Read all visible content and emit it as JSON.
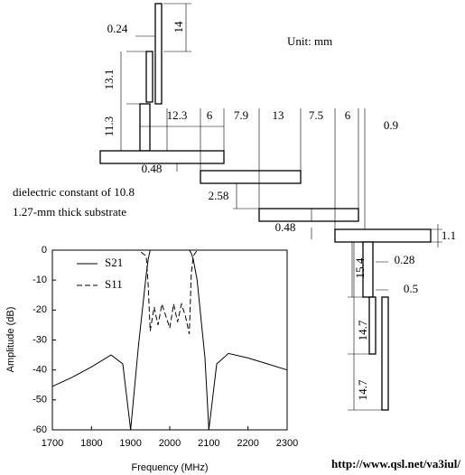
{
  "diagram": {
    "unit": "Unit: mm",
    "substrate": [
      "dielectric constant of 10.8",
      "1.27-mm thick substrate"
    ],
    "dimensions": [
      "0.24",
      "14",
      "13.1",
      "11.3",
      "12.3",
      "6",
      "7.9",
      "13",
      "7.5",
      "6",
      "0.9",
      "0.48",
      "2.58",
      "0.48",
      "1.1",
      "15.4",
      "0.28",
      "0.5",
      "14.7",
      "14.7"
    ],
    "url": "http://www.qsl.net/va3iul/"
  },
  "chart_data": {
    "type": "line",
    "xlabel": "Frequency (MHz)",
    "ylabel": "Amplitude (dB)",
    "x": [
      1700,
      1750,
      1800,
      1850,
      1880,
      1900,
      1920,
      1940,
      1945,
      1950,
      1960,
      1970,
      1980,
      1990,
      2000,
      2010,
      2020,
      2030,
      2040,
      2050,
      2055,
      2060,
      2070,
      2090,
      2100,
      2120,
      2150,
      2200,
      2250,
      2300
    ],
    "series": [
      {
        "name": "S21",
        "color": "#000000",
        "dash": false,
        "values": [
          -45.5,
          -42.5,
          -39,
          -35,
          -38,
          -60,
          -32,
          -8,
          -3,
          0,
          0,
          0,
          0,
          0,
          0,
          0,
          0,
          0,
          0,
          0,
          -1,
          -3,
          -10,
          -36,
          -60,
          -38,
          -34.5,
          -36,
          -38,
          -40
        ]
      },
      {
        "name": "S11",
        "color": "#000000",
        "dash": true,
        "values": [
          0,
          0,
          0,
          0,
          0,
          0,
          0,
          -2,
          -12,
          -27,
          -19,
          -25,
          -18,
          -22,
          -26,
          -18,
          -24,
          -18,
          -22,
          -28,
          -8,
          -2,
          0,
          0,
          0,
          0,
          0,
          0,
          0,
          0
        ]
      }
    ],
    "xlim": [
      1700,
      2300
    ],
    "ylim": [
      -60,
      0
    ],
    "xticks": [
      1700,
      1800,
      1900,
      2000,
      2100,
      2200,
      2300
    ],
    "yticks": [
      0,
      -10,
      -20,
      -30,
      -40,
      -50,
      -60
    ]
  }
}
